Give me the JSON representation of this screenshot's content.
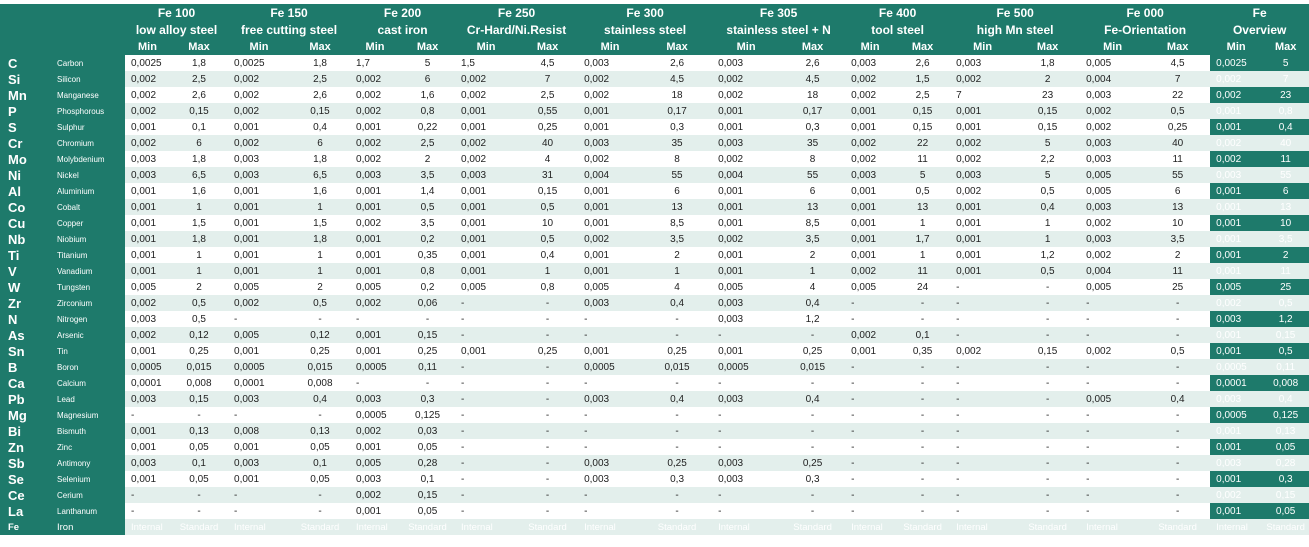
{
  "header": {
    "groups": [
      {
        "name": "Fe 100",
        "subtitle": "low alloy steel"
      },
      {
        "name": "Fe 150",
        "subtitle": "free cutting steel"
      },
      {
        "name": "Fe 200",
        "subtitle": "cast iron"
      },
      {
        "name": "Fe 250",
        "subtitle": "Cr-Hard/Ni.Resist"
      },
      {
        "name": "Fe 300",
        "subtitle": "stainless steel"
      },
      {
        "name": "Fe 305",
        "subtitle": "stainless steel + N"
      },
      {
        "name": "Fe 400",
        "subtitle": "tool steel"
      },
      {
        "name": "Fe 500",
        "subtitle": "high Mn steel"
      },
      {
        "name": "Fe 000",
        "subtitle": "Fe-Orientation"
      },
      {
        "name": "Fe",
        "subtitle": "Overview"
      }
    ],
    "min_label": "Min",
    "max_label": "Max"
  },
  "rows": [
    {
      "symbol": "C",
      "name": "Carbon",
      "values": [
        [
          "0,0025",
          "1,8"
        ],
        [
          "0,0025",
          "1,8"
        ],
        [
          "1,7",
          "5"
        ],
        [
          "1,5",
          "4,5"
        ],
        [
          "0,003",
          "2,6"
        ],
        [
          "0,003",
          "2,6"
        ],
        [
          "0,003",
          "2,6"
        ],
        [
          "0,003",
          "1,8"
        ],
        [
          "0,005",
          "4,5"
        ],
        [
          "0,0025",
          "5"
        ]
      ]
    },
    {
      "symbol": "Si",
      "name": "Silicon",
      "values": [
        [
          "0,002",
          "2,5"
        ],
        [
          "0,002",
          "2,5"
        ],
        [
          "0,002",
          "6"
        ],
        [
          "0,002",
          "7"
        ],
        [
          "0,002",
          "4,5"
        ],
        [
          "0,002",
          "4,5"
        ],
        [
          "0,002",
          "1,5"
        ],
        [
          "0,002",
          "2"
        ],
        [
          "0,004",
          "7"
        ],
        [
          "0,002",
          "7"
        ]
      ]
    },
    {
      "symbol": "Mn",
      "name": "Manganese",
      "values": [
        [
          "0,002",
          "2,6"
        ],
        [
          "0,002",
          "2,6"
        ],
        [
          "0,002",
          "1,6"
        ],
        [
          "0,002",
          "2,5"
        ],
        [
          "0,002",
          "18"
        ],
        [
          "0,002",
          "18"
        ],
        [
          "0,002",
          "2,5"
        ],
        [
          "7",
          "23"
        ],
        [
          "0,003",
          "22"
        ],
        [
          "0,002",
          "23"
        ]
      ]
    },
    {
      "symbol": "P",
      "name": "Phosphorous",
      "values": [
        [
          "0,002",
          "0,15"
        ],
        [
          "0,002",
          "0,15"
        ],
        [
          "0,002",
          "0,8"
        ],
        [
          "0,001",
          "0,55"
        ],
        [
          "0,001",
          "0,17"
        ],
        [
          "0,001",
          "0,17"
        ],
        [
          "0,001",
          "0,15"
        ],
        [
          "0,001",
          "0,15"
        ],
        [
          "0,002",
          "0,5"
        ],
        [
          "0,001",
          "0,8"
        ]
      ]
    },
    {
      "symbol": "S",
      "name": "Sulphur",
      "values": [
        [
          "0,001",
          "0,1"
        ],
        [
          "0,001",
          "0,4"
        ],
        [
          "0,001",
          "0,22"
        ],
        [
          "0,001",
          "0,25"
        ],
        [
          "0,001",
          "0,3"
        ],
        [
          "0,001",
          "0,3"
        ],
        [
          "0,001",
          "0,15"
        ],
        [
          "0,001",
          "0,15"
        ],
        [
          "0,002",
          "0,25"
        ],
        [
          "0,001",
          "0,4"
        ]
      ]
    },
    {
      "symbol": "Cr",
      "name": "Chromium",
      "values": [
        [
          "0,002",
          "6"
        ],
        [
          "0,002",
          "6"
        ],
        [
          "0,002",
          "2,5"
        ],
        [
          "0,002",
          "40"
        ],
        [
          "0,003",
          "35"
        ],
        [
          "0,003",
          "35"
        ],
        [
          "0,002",
          "22"
        ],
        [
          "0,002",
          "5"
        ],
        [
          "0,003",
          "40"
        ],
        [
          "0,002",
          "40"
        ]
      ]
    },
    {
      "symbol": "Mo",
      "name": "Molybdenium",
      "values": [
        [
          "0,003",
          "1,8"
        ],
        [
          "0,003",
          "1,8"
        ],
        [
          "0,002",
          "2"
        ],
        [
          "0,002",
          "4"
        ],
        [
          "0,002",
          "8"
        ],
        [
          "0,002",
          "8"
        ],
        [
          "0,002",
          "11"
        ],
        [
          "0,002",
          "2,2"
        ],
        [
          "0,003",
          "11"
        ],
        [
          "0,002",
          "11"
        ]
      ]
    },
    {
      "symbol": "Ni",
      "name": "Nickel",
      "values": [
        [
          "0,003",
          "6,5"
        ],
        [
          "0,003",
          "6,5"
        ],
        [
          "0,003",
          "3,5"
        ],
        [
          "0,003",
          "31"
        ],
        [
          "0,004",
          "55"
        ],
        [
          "0,004",
          "55"
        ],
        [
          "0,003",
          "5"
        ],
        [
          "0,003",
          "5"
        ],
        [
          "0,005",
          "55"
        ],
        [
          "0,003",
          "55"
        ]
      ]
    },
    {
      "symbol": "Al",
      "name": "Aluminium",
      "values": [
        [
          "0,001",
          "1,6"
        ],
        [
          "0,001",
          "1,6"
        ],
        [
          "0,001",
          "1,4"
        ],
        [
          "0,001",
          "0,15"
        ],
        [
          "0,001",
          "6"
        ],
        [
          "0,001",
          "6"
        ],
        [
          "0,001",
          "0,5"
        ],
        [
          "0,002",
          "0,5"
        ],
        [
          "0,005",
          "6"
        ],
        [
          "0,001",
          "6"
        ]
      ]
    },
    {
      "symbol": "Co",
      "name": "Cobalt",
      "values": [
        [
          "0,001",
          "1"
        ],
        [
          "0,001",
          "1"
        ],
        [
          "0,001",
          "0,5"
        ],
        [
          "0,001",
          "0,5"
        ],
        [
          "0,001",
          "13"
        ],
        [
          "0,001",
          "13"
        ],
        [
          "0,001",
          "13"
        ],
        [
          "0,001",
          "0,4"
        ],
        [
          "0,003",
          "13"
        ],
        [
          "0,001",
          "13"
        ]
      ]
    },
    {
      "symbol": "Cu",
      "name": "Copper",
      "values": [
        [
          "0,001",
          "1,5"
        ],
        [
          "0,001",
          "1,5"
        ],
        [
          "0,002",
          "3,5"
        ],
        [
          "0,001",
          "10"
        ],
        [
          "0,001",
          "8,5"
        ],
        [
          "0,001",
          "8,5"
        ],
        [
          "0,001",
          "1"
        ],
        [
          "0,001",
          "1"
        ],
        [
          "0,002",
          "10"
        ],
        [
          "0,001",
          "10"
        ]
      ]
    },
    {
      "symbol": "Nb",
      "name": "Niobium",
      "values": [
        [
          "0,001",
          "1,8"
        ],
        [
          "0,001",
          "1,8"
        ],
        [
          "0,001",
          "0,2"
        ],
        [
          "0,001",
          "0,5"
        ],
        [
          "0,002",
          "3,5"
        ],
        [
          "0,002",
          "3,5"
        ],
        [
          "0,001",
          "1,7"
        ],
        [
          "0,001",
          "1"
        ],
        [
          "0,003",
          "3,5"
        ],
        [
          "0,001",
          "3,5"
        ]
      ]
    },
    {
      "symbol": "Ti",
      "name": "Titanium",
      "values": [
        [
          "0,001",
          "1"
        ],
        [
          "0,001",
          "1"
        ],
        [
          "0,001",
          "0,35"
        ],
        [
          "0,001",
          "0,4"
        ],
        [
          "0,001",
          "2"
        ],
        [
          "0,001",
          "2"
        ],
        [
          "0,001",
          "1"
        ],
        [
          "0,001",
          "1,2"
        ],
        [
          "0,002",
          "2"
        ],
        [
          "0,001",
          "2"
        ]
      ]
    },
    {
      "symbol": "V",
      "name": "Vanadium",
      "values": [
        [
          "0,001",
          "1"
        ],
        [
          "0,001",
          "1"
        ],
        [
          "0,001",
          "0,8"
        ],
        [
          "0,001",
          "1"
        ],
        [
          "0,001",
          "1"
        ],
        [
          "0,001",
          "1"
        ],
        [
          "0,002",
          "11"
        ],
        [
          "0,001",
          "0,5"
        ],
        [
          "0,004",
          "11"
        ],
        [
          "0,001",
          "11"
        ]
      ]
    },
    {
      "symbol": "W",
      "name": "Tungsten",
      "values": [
        [
          "0,005",
          "2"
        ],
        [
          "0,005",
          "2"
        ],
        [
          "0,005",
          "0,2"
        ],
        [
          "0,005",
          "0,8"
        ],
        [
          "0,005",
          "4"
        ],
        [
          "0,005",
          "4"
        ],
        [
          "0,005",
          "24"
        ],
        [
          "-",
          "-"
        ],
        [
          "0,005",
          "25"
        ],
        [
          "0,005",
          "25"
        ]
      ]
    },
    {
      "symbol": "Zr",
      "name": "Zirconium",
      "values": [
        [
          "0,002",
          "0,5"
        ],
        [
          "0,002",
          "0,5"
        ],
        [
          "0,002",
          "0,06"
        ],
        [
          "-",
          "-"
        ],
        [
          "0,003",
          "0,4"
        ],
        [
          "0,003",
          "0,4"
        ],
        [
          "-",
          "-"
        ],
        [
          "-",
          "-"
        ],
        [
          "-",
          "-"
        ],
        [
          "0,002",
          "0,5"
        ]
      ]
    },
    {
      "symbol": "N",
      "name": "Nitrogen",
      "values": [
        [
          "0,003",
          "0,5"
        ],
        [
          "-",
          "-"
        ],
        [
          "-",
          "-"
        ],
        [
          "-",
          "-"
        ],
        [
          "-",
          "-"
        ],
        [
          "0,003",
          "1,2"
        ],
        [
          "-",
          "-"
        ],
        [
          "-",
          "-"
        ],
        [
          "-",
          "-"
        ],
        [
          "0,003",
          "1,2"
        ]
      ]
    },
    {
      "symbol": "As",
      "name": "Arsenic",
      "values": [
        [
          "0,002",
          "0,12"
        ],
        [
          "0,005",
          "0,12"
        ],
        [
          "0,001",
          "0,15"
        ],
        [
          "-",
          "-"
        ],
        [
          "-",
          "-"
        ],
        [
          "-",
          "-"
        ],
        [
          "0,002",
          "0,1"
        ],
        [
          "-",
          "-"
        ],
        [
          "-",
          "-"
        ],
        [
          "0,001",
          "0,15"
        ]
      ]
    },
    {
      "symbol": "Sn",
      "name": "Tin",
      "values": [
        [
          "0,001",
          "0,25"
        ],
        [
          "0,001",
          "0,25"
        ],
        [
          "0,001",
          "0,25"
        ],
        [
          "0,001",
          "0,25"
        ],
        [
          "0,001",
          "0,25"
        ],
        [
          "0,001",
          "0,25"
        ],
        [
          "0,001",
          "0,35"
        ],
        [
          "0,002",
          "0,15"
        ],
        [
          "0,002",
          "0,5"
        ],
        [
          "0,001",
          "0,5"
        ]
      ]
    },
    {
      "symbol": "B",
      "name": "Boron",
      "values": [
        [
          "0,0005",
          "0,015"
        ],
        [
          "0,0005",
          "0,015"
        ],
        [
          "0,0005",
          "0,11"
        ],
        [
          "-",
          "-"
        ],
        [
          "0,0005",
          "0,015"
        ],
        [
          "0,0005",
          "0,015"
        ],
        [
          "-",
          "-"
        ],
        [
          "-",
          "-"
        ],
        [
          "-",
          "-"
        ],
        [
          "0,0005",
          "0,11"
        ]
      ]
    },
    {
      "symbol": "Ca",
      "name": "Calcium",
      "values": [
        [
          "0,0001",
          "0,008"
        ],
        [
          "0,0001",
          "0,008"
        ],
        [
          "-",
          "-"
        ],
        [
          "-",
          "-"
        ],
        [
          "-",
          "-"
        ],
        [
          "-",
          "-"
        ],
        [
          "-",
          "-"
        ],
        [
          "-",
          "-"
        ],
        [
          "-",
          "-"
        ],
        [
          "0,0001",
          "0,008"
        ]
      ]
    },
    {
      "symbol": "Pb",
      "name": "Lead",
      "values": [
        [
          "0,003",
          "0,15"
        ],
        [
          "0,003",
          "0,4"
        ],
        [
          "0,003",
          "0,3"
        ],
        [
          "-",
          "-"
        ],
        [
          "0,003",
          "0,4"
        ],
        [
          "0,003",
          "0,4"
        ],
        [
          "-",
          "-"
        ],
        [
          "-",
          "-"
        ],
        [
          "0,005",
          "0,4"
        ],
        [
          "0,003",
          "0,4"
        ]
      ]
    },
    {
      "symbol": "Mg",
      "name": "Magnesium",
      "values": [
        [
          "-",
          "-"
        ],
        [
          "-",
          "-"
        ],
        [
          "0,0005",
          "0,125"
        ],
        [
          "-",
          "-"
        ],
        [
          "-",
          "-"
        ],
        [
          "-",
          "-"
        ],
        [
          "-",
          "-"
        ],
        [
          "-",
          "-"
        ],
        [
          "-",
          "-"
        ],
        [
          "0,0005",
          "0,125"
        ]
      ]
    },
    {
      "symbol": "Bi",
      "name": "Bismuth",
      "values": [
        [
          "0,001",
          "0,13"
        ],
        [
          "0,008",
          "0,13"
        ],
        [
          "0,002",
          "0,03"
        ],
        [
          "-",
          "-"
        ],
        [
          "-",
          "-"
        ],
        [
          "-",
          "-"
        ],
        [
          "-",
          "-"
        ],
        [
          "-",
          "-"
        ],
        [
          "-",
          "-"
        ],
        [
          "0,001",
          "0,13"
        ]
      ]
    },
    {
      "symbol": "Zn",
      "name": "Zinc",
      "values": [
        [
          "0,001",
          "0,05"
        ],
        [
          "0,001",
          "0,05"
        ],
        [
          "0,001",
          "0,05"
        ],
        [
          "-",
          "-"
        ],
        [
          "-",
          "-"
        ],
        [
          "-",
          "-"
        ],
        [
          "-",
          "-"
        ],
        [
          "-",
          "-"
        ],
        [
          "-",
          "-"
        ],
        [
          "0,001",
          "0,05"
        ]
      ]
    },
    {
      "symbol": "Sb",
      "name": "Antimony",
      "values": [
        [
          "0,003",
          "0,1"
        ],
        [
          "0,003",
          "0,1"
        ],
        [
          "0,005",
          "0,28"
        ],
        [
          "-",
          "-"
        ],
        [
          "0,003",
          "0,25"
        ],
        [
          "0,003",
          "0,25"
        ],
        [
          "-",
          "-"
        ],
        [
          "-",
          "-"
        ],
        [
          "-",
          "-"
        ],
        [
          "0,003",
          "0,28"
        ]
      ]
    },
    {
      "symbol": "Se",
      "name": "Selenium",
      "values": [
        [
          "0,001",
          "0,05"
        ],
        [
          "0,001",
          "0,05"
        ],
        [
          "0,003",
          "0,1"
        ],
        [
          "-",
          "-"
        ],
        [
          "0,003",
          "0,3"
        ],
        [
          "0,003",
          "0,3"
        ],
        [
          "-",
          "-"
        ],
        [
          "-",
          "-"
        ],
        [
          "-",
          "-"
        ],
        [
          "0,001",
          "0,3"
        ]
      ]
    },
    {
      "symbol": "Ce",
      "name": "Cerium",
      "values": [
        [
          "-",
          "-"
        ],
        [
          "-",
          "-"
        ],
        [
          "0,002",
          "0,15"
        ],
        [
          "-",
          "-"
        ],
        [
          "-",
          "-"
        ],
        [
          "-",
          "-"
        ],
        [
          "-",
          "-"
        ],
        [
          "-",
          "-"
        ],
        [
          "-",
          "-"
        ],
        [
          "0,002",
          "0,15"
        ]
      ]
    },
    {
      "symbol": "La",
      "name": "Lanthanum",
      "values": [
        [
          "-",
          "-"
        ],
        [
          "-",
          "-"
        ],
        [
          "0,001",
          "0,05"
        ],
        [
          "-",
          "-"
        ],
        [
          "-",
          "-"
        ],
        [
          "-",
          "-"
        ],
        [
          "-",
          "-"
        ],
        [
          "-",
          "-"
        ],
        [
          "-",
          "-"
        ],
        [
          "0,001",
          "0,05"
        ]
      ]
    },
    {
      "symbol": "Fe",
      "name": "Iron",
      "values": [
        [
          "Internal",
          "Standard"
        ],
        [
          "Internal",
          "Standard"
        ],
        [
          "Internal",
          "Standard"
        ],
        [
          "Internal",
          "Standard"
        ],
        [
          "Internal",
          "Standard"
        ],
        [
          "Internal",
          "Standard"
        ],
        [
          "Internal",
          "Standard"
        ],
        [
          "Internal",
          "Standard"
        ],
        [
          "Internal",
          "Standard"
        ],
        [
          "Internal",
          "Standard"
        ]
      ]
    }
  ]
}
